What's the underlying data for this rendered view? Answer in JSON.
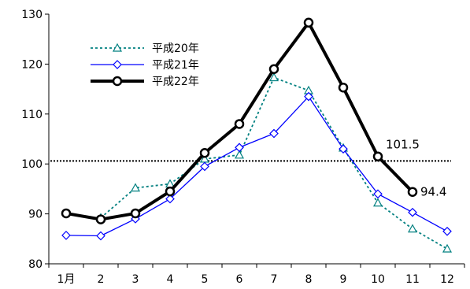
{
  "chart_data": {
    "type": "line",
    "categories": [
      "1月",
      "2",
      "3",
      "4",
      "5",
      "6",
      "7",
      "8",
      "9",
      "10",
      "11",
      "12"
    ],
    "ylim": [
      80,
      130
    ],
    "yticks": [
      80,
      90,
      100,
      110,
      120,
      130
    ],
    "series": [
      {
        "name": "平成20年",
        "color": "#008080",
        "style": "dotted",
        "marker": "triangle",
        "values": [
          null,
          89.2,
          95.2,
          96.0,
          101.0,
          101.8,
          117.3,
          114.7,
          103.2,
          92.2,
          87.0,
          83.0
        ]
      },
      {
        "name": "平成21年",
        "color": "#0000ff",
        "style": "solid-thin",
        "marker": "diamond",
        "values": [
          85.7,
          85.6,
          89.0,
          93.0,
          99.5,
          103.3,
          106.1,
          113.5,
          103.0,
          94.0,
          90.3,
          86.5
        ]
      },
      {
        "name": "平成22年",
        "color": "#000000",
        "style": "solid-thick",
        "marker": "circle",
        "values": [
          90.1,
          88.9,
          90.1,
          94.5,
          102.2,
          108.0,
          119.0,
          128.3,
          115.3,
          101.5,
          94.4,
          null
        ]
      }
    ],
    "reference_line": {
      "value": 100.6,
      "style": "dotted",
      "color": "#000000"
    },
    "annotations": [
      {
        "text": "101.5",
        "category_index": 9,
        "value": 101.5
      },
      {
        "text": "94.4",
        "category_index": 10,
        "value": 94.4
      }
    ],
    "legend_position": "top-left",
    "grid": false
  }
}
